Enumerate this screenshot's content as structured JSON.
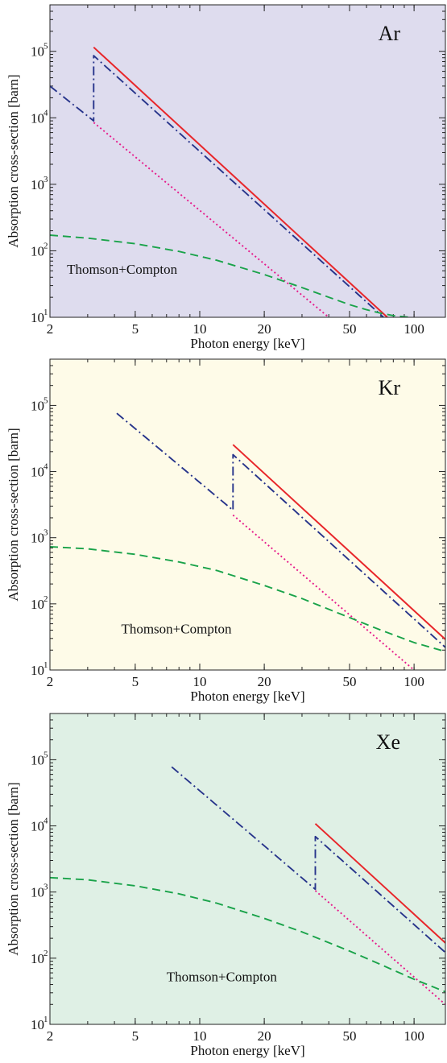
{
  "chart_data": [
    {
      "type": "line",
      "element_label": "Ar",
      "background": "#dedcee",
      "xlabel": "Photon energy [keV]",
      "ylabel": "Absorption cross-section [barn]",
      "xscale": "log",
      "yscale": "log",
      "xlim": [
        2,
        140
      ],
      "ylim": [
        10,
        500000
      ],
      "xticks": [
        2,
        5,
        10,
        20,
        50,
        100
      ],
      "yticks": [
        {
          "value": 10,
          "base": "10",
          "exp": "1"
        },
        {
          "value": 100,
          "base": "10",
          "exp": "2"
        },
        {
          "value": 1000,
          "base": "10",
          "exp": "3"
        },
        {
          "value": 10000,
          "base": "10",
          "exp": "4"
        },
        {
          "value": 100000,
          "base": "10",
          "exp": "5"
        }
      ],
      "grid": false,
      "annotation": {
        "text": "Thomson+Compton",
        "x": 2.4,
        "y": 45
      },
      "series": [
        {
          "role": "total-above-edge",
          "color": "#e8262a",
          "dash": "solid",
          "x": [
            3.2,
            75
          ],
          "y": [
            115000,
            10
          ]
        },
        {
          "role": "photoabsorption",
          "color": "#27348b",
          "dash": "dashdot",
          "x": [
            2.0,
            3.2,
            3.2,
            72
          ],
          "y": [
            30000,
            9000,
            86000,
            10
          ]
        },
        {
          "role": "photoabsorption-below-edge-extrapolated",
          "color": "#e6198a",
          "dash": "dot",
          "x": [
            3.2,
            40
          ],
          "y": [
            8500,
            10
          ]
        },
        {
          "role": "thomson-compton",
          "color": "#1aa34a",
          "dash": "dash",
          "x": [
            2,
            3,
            5,
            8,
            12,
            20,
            30,
            40,
            50,
            60,
            70,
            80,
            95
          ],
          "y": [
            172,
            155,
            128,
            98,
            72,
            44,
            28,
            20,
            15.5,
            13,
            11.5,
            10.6,
            10
          ]
        }
      ]
    },
    {
      "type": "line",
      "element_label": "Kr",
      "background": "#fefbe8",
      "xlabel": "Photon energy [keV]",
      "ylabel": "Absorption cross-section [barn]",
      "xscale": "log",
      "yscale": "log",
      "xlim": [
        2,
        140
      ],
      "ylim": [
        10,
        500000
      ],
      "xticks": [
        2,
        5,
        10,
        20,
        50,
        100
      ],
      "yticks": [
        {
          "value": 10,
          "base": "10",
          "exp": "1"
        },
        {
          "value": 100,
          "base": "10",
          "exp": "2"
        },
        {
          "value": 1000,
          "base": "10",
          "exp": "3"
        },
        {
          "value": 10000,
          "base": "10",
          "exp": "4"
        },
        {
          "value": 100000,
          "base": "10",
          "exp": "5"
        }
      ],
      "grid": false,
      "annotation": {
        "text": "Thomson+Compton",
        "x": 4.3,
        "y": 36
      },
      "series": [
        {
          "role": "total-above-edge",
          "color": "#e8262a",
          "dash": "solid",
          "x": [
            14.3,
            140
          ],
          "y": [
            25500,
            29
          ]
        },
        {
          "role": "photoabsorption",
          "color": "#27348b",
          "dash": "dashdot",
          "x": [
            4.1,
            14.3,
            14.3,
            140
          ],
          "y": [
            76000,
            2600,
            18000,
            22
          ]
        },
        {
          "role": "photoabsorption-below-edge-extrapolated",
          "color": "#e6198a",
          "dash": "dot",
          "x": [
            14.3,
            100
          ],
          "y": [
            2200,
            10
          ]
        },
        {
          "role": "thomson-compton",
          "color": "#1aa34a",
          "dash": "dash",
          "x": [
            2,
            3,
            5,
            8,
            12,
            20,
            30,
            50,
            70,
            100,
            140
          ],
          "y": [
            730,
            680,
            560,
            430,
            320,
            190,
            120,
            62,
            40,
            26,
            19
          ]
        }
      ]
    },
    {
      "type": "line",
      "element_label": "Xe",
      "background": "#dff0e5",
      "xlabel": "Photon energy [keV]",
      "ylabel": "Absorption cross-section [barn]",
      "xscale": "log",
      "yscale": "log",
      "xlim": [
        2,
        140
      ],
      "ylim": [
        10,
        500000
      ],
      "xticks": [
        2,
        5,
        10,
        20,
        50,
        100
      ],
      "yticks": [
        {
          "value": 10,
          "base": "10",
          "exp": "1"
        },
        {
          "value": 100,
          "base": "10",
          "exp": "2"
        },
        {
          "value": 1000,
          "base": "10",
          "exp": "3"
        },
        {
          "value": 10000,
          "base": "10",
          "exp": "4"
        },
        {
          "value": 100000,
          "base": "10",
          "exp": "5"
        }
      ],
      "grid": false,
      "annotation": {
        "text": "Thomson+Compton",
        "x": 7.0,
        "y": 45
      },
      "series": [
        {
          "role": "total-above-edge",
          "color": "#e8262a",
          "dash": "solid",
          "x": [
            34.6,
            140
          ],
          "y": [
            10800,
            170
          ]
        },
        {
          "role": "photoabsorption",
          "color": "#27348b",
          "dash": "dashdot",
          "x": [
            7.4,
            34.6,
            34.6,
            140
          ],
          "y": [
            78000,
            1100,
            6900,
            122
          ]
        },
        {
          "role": "photoabsorption-below-edge-extrapolated",
          "color": "#e6198a",
          "dash": "dot",
          "x": [
            34.6,
            140
          ],
          "y": [
            1050,
            20
          ]
        },
        {
          "role": "thomson-compton",
          "color": "#1aa34a",
          "dash": "dash",
          "x": [
            2,
            3,
            5,
            8,
            12,
            20,
            30,
            50,
            70,
            100,
            140
          ],
          "y": [
            1650,
            1530,
            1240,
            940,
            680,
            400,
            250,
            128,
            80,
            48,
            31
          ]
        }
      ]
    }
  ]
}
